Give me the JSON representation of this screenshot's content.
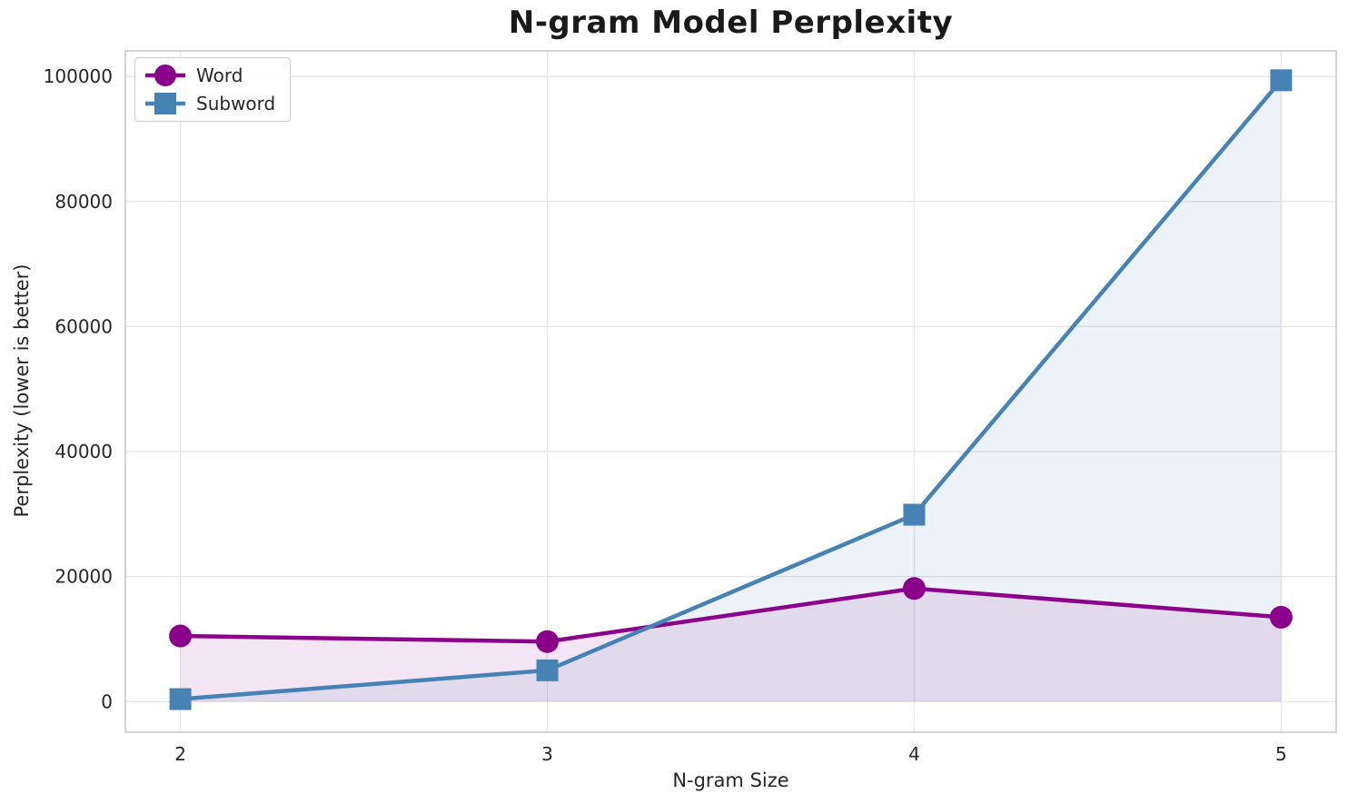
{
  "chart_data": {
    "type": "line",
    "title": "N-gram Model Perplexity",
    "xlabel": "N-gram Size",
    "ylabel": "Perplexity (lower is better)",
    "x": [
      2,
      3,
      4,
      5
    ],
    "series": [
      {
        "name": "Word",
        "marker": "circle",
        "color": "#8B008B",
        "values": [
          10500,
          9600,
          18100,
          13500
        ]
      },
      {
        "name": "Subword",
        "marker": "square",
        "color": "#4682B4",
        "values": [
          400,
          5000,
          29900,
          99400
        ]
      }
    ],
    "fill_to_zero": true,
    "fill_alpha": 0.1,
    "xticks": [
      2,
      3,
      4,
      5
    ],
    "yticks": [
      0,
      20000,
      40000,
      60000,
      80000,
      100000
    ],
    "xlim": [
      1.85,
      5.15
    ],
    "ylim": [
      -4900,
      104100
    ],
    "grid": true,
    "legend_position": "upper left",
    "colors": {
      "background": "#ffffff",
      "grid": "#e6e6e6",
      "frame": "#c9c9c9",
      "tick_text": "#262626",
      "title_text": "#1a1a1a"
    }
  }
}
